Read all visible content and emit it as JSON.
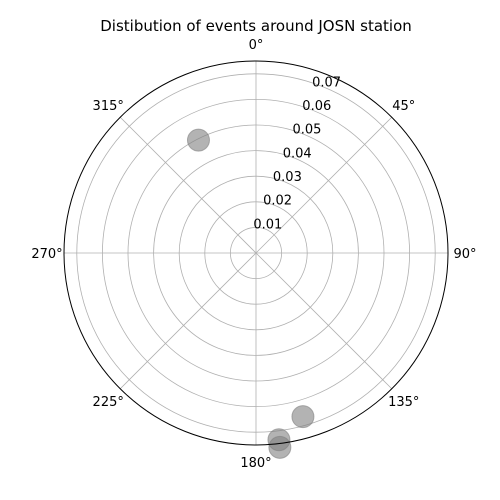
{
  "chart_data": {
    "type": "scatter",
    "projection": "polar",
    "title": "Distibution of events around JOSN station",
    "theta_zero_location": "N",
    "theta_direction": "clockwise",
    "rlim": [
      0,
      0.075
    ],
    "grid": true,
    "angle_tick_labels": [
      "0°",
      "45°",
      "90°",
      "135°",
      "180°",
      "225°",
      "270°",
      "315°"
    ],
    "radial_tick_labels": [
      "0.01",
      "0.02",
      "0.03",
      "0.04",
      "0.05",
      "0.06",
      "0.07"
    ],
    "marker_color": "#808080",
    "marker_alpha": 0.6,
    "points": [
      {
        "theta_deg": 333,
        "r": 0.0495
      },
      {
        "theta_deg": 164,
        "r": 0.0665
      },
      {
        "theta_deg": 173,
        "r": 0.0735
      },
      {
        "theta_deg": 173,
        "r": 0.0765
      }
    ]
  }
}
